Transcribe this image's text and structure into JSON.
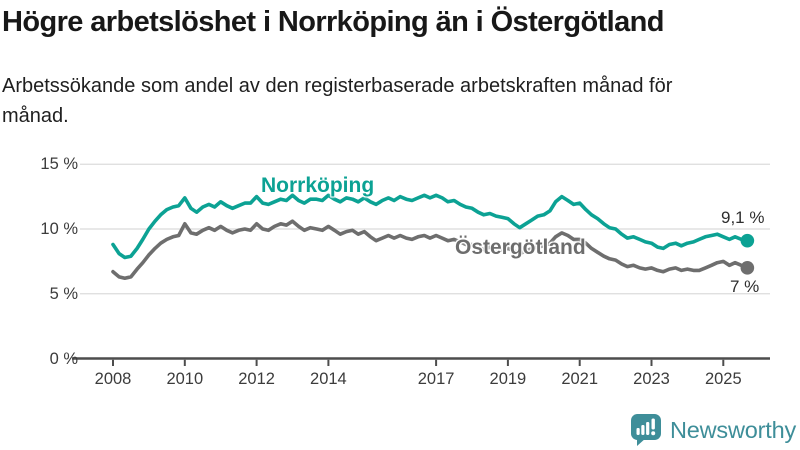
{
  "title": "Högre arbetslöshet i Norrköping än i Östergötland",
  "subtitle": "Arbetssökande som andel av den registerbaserade arbetskraften månad för månad.",
  "branding": {
    "logo_text": "Newsworthy",
    "logo_color": "#3e8e99",
    "logo_icon": "speech-bubble-bar-chart-exclamation"
  },
  "colors": {
    "series_norrkoping": "#0ca294",
    "series_ostergotland": "#6e6e6e",
    "gridline": "#dbdbdb",
    "axis": "#4d4d4d",
    "background": "#ffffff"
  },
  "chart_data": {
    "type": "line",
    "title": "Högre arbetslöshet i Norrköping än i Östergötland",
    "subtitle": "Arbetssökande som andel av den registerbaserade arbetskraften månad för månad.",
    "xlabel": "",
    "ylabel": "",
    "grid": true,
    "legend_position": "inline-labels-on-lines",
    "x_axis": {
      "ticks": [
        2008,
        2010,
        2012,
        2014,
        2017,
        2019,
        2021,
        2023,
        2025
      ],
      "tick_labels": [
        "2008",
        "2010",
        "2012",
        "2014",
        "2017",
        "2019",
        "2021",
        "2023",
        "2025"
      ],
      "range": [
        2007.8,
        2026.4
      ]
    },
    "y_axis": {
      "ticks": [
        0,
        5,
        10,
        15
      ],
      "tick_labels": [
        "0 %",
        "5 %",
        "10 %",
        "15 %"
      ],
      "range": [
        0,
        15.5
      ],
      "unit": "%"
    },
    "series": [
      {
        "name": "Norrköping",
        "color": "#0ca294",
        "end_label": "9,1 %",
        "latest_value": 9.1,
        "points": [
          [
            2008.0,
            8.8
          ],
          [
            2008.17,
            8.1
          ],
          [
            2008.33,
            7.8
          ],
          [
            2008.5,
            7.9
          ],
          [
            2008.67,
            8.5
          ],
          [
            2008.83,
            9.2
          ],
          [
            2009.0,
            10.0
          ],
          [
            2009.17,
            10.6
          ],
          [
            2009.33,
            11.1
          ],
          [
            2009.5,
            11.5
          ],
          [
            2009.67,
            11.7
          ],
          [
            2009.83,
            11.8
          ],
          [
            2010.0,
            12.4
          ],
          [
            2010.17,
            11.6
          ],
          [
            2010.33,
            11.3
          ],
          [
            2010.5,
            11.7
          ],
          [
            2010.67,
            11.9
          ],
          [
            2010.83,
            11.7
          ],
          [
            2011.0,
            12.1
          ],
          [
            2011.17,
            11.8
          ],
          [
            2011.33,
            11.6
          ],
          [
            2011.5,
            11.8
          ],
          [
            2011.67,
            12.0
          ],
          [
            2011.83,
            12.0
          ],
          [
            2012.0,
            12.5
          ],
          [
            2012.17,
            12.0
          ],
          [
            2012.33,
            11.9
          ],
          [
            2012.5,
            12.1
          ],
          [
            2012.67,
            12.3
          ],
          [
            2012.83,
            12.2
          ],
          [
            2013.0,
            12.6
          ],
          [
            2013.17,
            12.2
          ],
          [
            2013.33,
            12.0
          ],
          [
            2013.5,
            12.3
          ],
          [
            2013.67,
            12.3
          ],
          [
            2013.83,
            12.2
          ],
          [
            2014.0,
            12.6
          ],
          [
            2014.17,
            12.3
          ],
          [
            2014.33,
            12.1
          ],
          [
            2014.5,
            12.4
          ],
          [
            2014.67,
            12.3
          ],
          [
            2014.83,
            12.1
          ],
          [
            2015.0,
            12.4
          ],
          [
            2015.17,
            12.1
          ],
          [
            2015.33,
            11.9
          ],
          [
            2015.5,
            12.2
          ],
          [
            2015.67,
            12.4
          ],
          [
            2015.83,
            12.2
          ],
          [
            2016.0,
            12.5
          ],
          [
            2016.17,
            12.3
          ],
          [
            2016.33,
            12.2
          ],
          [
            2016.5,
            12.4
          ],
          [
            2016.67,
            12.6
          ],
          [
            2016.83,
            12.4
          ],
          [
            2017.0,
            12.6
          ],
          [
            2017.17,
            12.4
          ],
          [
            2017.33,
            12.1
          ],
          [
            2017.5,
            12.2
          ],
          [
            2017.67,
            11.9
          ],
          [
            2017.83,
            11.7
          ],
          [
            2018.0,
            11.6
          ],
          [
            2018.17,
            11.3
          ],
          [
            2018.33,
            11.1
          ],
          [
            2018.5,
            11.2
          ],
          [
            2018.67,
            11.0
          ],
          [
            2018.83,
            10.9
          ],
          [
            2019.0,
            10.8
          ],
          [
            2019.17,
            10.4
          ],
          [
            2019.33,
            10.1
          ],
          [
            2019.5,
            10.4
          ],
          [
            2019.67,
            10.7
          ],
          [
            2019.83,
            11.0
          ],
          [
            2020.0,
            11.1
          ],
          [
            2020.17,
            11.4
          ],
          [
            2020.33,
            12.1
          ],
          [
            2020.5,
            12.5
          ],
          [
            2020.67,
            12.2
          ],
          [
            2020.83,
            11.9
          ],
          [
            2021.0,
            12.0
          ],
          [
            2021.17,
            11.5
          ],
          [
            2021.33,
            11.1
          ],
          [
            2021.5,
            10.8
          ],
          [
            2021.67,
            10.4
          ],
          [
            2021.83,
            10.1
          ],
          [
            2022.0,
            10.0
          ],
          [
            2022.17,
            9.6
          ],
          [
            2022.33,
            9.3
          ],
          [
            2022.5,
            9.4
          ],
          [
            2022.67,
            9.2
          ],
          [
            2022.83,
            9.0
          ],
          [
            2023.0,
            8.9
          ],
          [
            2023.17,
            8.6
          ],
          [
            2023.33,
            8.5
          ],
          [
            2023.5,
            8.8
          ],
          [
            2023.67,
            8.9
          ],
          [
            2023.83,
            8.7
          ],
          [
            2024.0,
            8.9
          ],
          [
            2024.17,
            9.0
          ],
          [
            2024.33,
            9.2
          ],
          [
            2024.5,
            9.4
          ],
          [
            2024.67,
            9.5
          ],
          [
            2024.83,
            9.6
          ],
          [
            2025.0,
            9.4
          ],
          [
            2025.17,
            9.2
          ],
          [
            2025.33,
            9.4
          ],
          [
            2025.5,
            9.2
          ],
          [
            2025.67,
            9.1
          ]
        ]
      },
      {
        "name": "Östergötland",
        "color": "#6e6e6e",
        "end_label": "7 %",
        "latest_value": 7.0,
        "points": [
          [
            2008.0,
            6.7
          ],
          [
            2008.17,
            6.3
          ],
          [
            2008.33,
            6.2
          ],
          [
            2008.5,
            6.3
          ],
          [
            2008.67,
            6.9
          ],
          [
            2008.83,
            7.4
          ],
          [
            2009.0,
            8.0
          ],
          [
            2009.17,
            8.5
          ],
          [
            2009.33,
            8.9
          ],
          [
            2009.5,
            9.2
          ],
          [
            2009.67,
            9.4
          ],
          [
            2009.83,
            9.5
          ],
          [
            2010.0,
            10.4
          ],
          [
            2010.17,
            9.7
          ],
          [
            2010.33,
            9.6
          ],
          [
            2010.5,
            9.9
          ],
          [
            2010.67,
            10.1
          ],
          [
            2010.83,
            9.9
          ],
          [
            2011.0,
            10.2
          ],
          [
            2011.17,
            9.9
          ],
          [
            2011.33,
            9.7
          ],
          [
            2011.5,
            9.9
          ],
          [
            2011.67,
            10.0
          ],
          [
            2011.83,
            9.9
          ],
          [
            2012.0,
            10.4
          ],
          [
            2012.17,
            10.0
          ],
          [
            2012.33,
            9.9
          ],
          [
            2012.5,
            10.2
          ],
          [
            2012.67,
            10.4
          ],
          [
            2012.83,
            10.3
          ],
          [
            2013.0,
            10.6
          ],
          [
            2013.17,
            10.2
          ],
          [
            2013.33,
            9.9
          ],
          [
            2013.5,
            10.1
          ],
          [
            2013.67,
            10.0
          ],
          [
            2013.83,
            9.9
          ],
          [
            2014.0,
            10.2
          ],
          [
            2014.17,
            9.9
          ],
          [
            2014.33,
            9.6
          ],
          [
            2014.5,
            9.8
          ],
          [
            2014.67,
            9.9
          ],
          [
            2014.83,
            9.6
          ],
          [
            2015.0,
            9.8
          ],
          [
            2015.17,
            9.4
          ],
          [
            2015.33,
            9.1
          ],
          [
            2015.5,
            9.3
          ],
          [
            2015.67,
            9.5
          ],
          [
            2015.83,
            9.3
          ],
          [
            2016.0,
            9.5
          ],
          [
            2016.17,
            9.3
          ],
          [
            2016.33,
            9.2
          ],
          [
            2016.5,
            9.4
          ],
          [
            2016.67,
            9.5
          ],
          [
            2016.83,
            9.3
          ],
          [
            2017.0,
            9.5
          ],
          [
            2017.17,
            9.3
          ],
          [
            2017.33,
            9.1
          ],
          [
            2017.5,
            9.2
          ],
          [
            2017.67,
            9.0
          ],
          [
            2017.83,
            8.8
          ],
          [
            2018.0,
            8.8
          ],
          [
            2018.17,
            8.6
          ],
          [
            2018.33,
            8.4
          ],
          [
            2018.5,
            8.6
          ],
          [
            2018.67,
            8.5
          ],
          [
            2018.83,
            8.4
          ],
          [
            2019.0,
            8.5
          ],
          [
            2019.17,
            8.3
          ],
          [
            2019.33,
            8.1
          ],
          [
            2019.5,
            8.3
          ],
          [
            2019.67,
            8.5
          ],
          [
            2019.83,
            8.6
          ],
          [
            2020.0,
            8.7
          ],
          [
            2020.17,
            8.9
          ],
          [
            2020.33,
            9.4
          ],
          [
            2020.5,
            9.7
          ],
          [
            2020.67,
            9.5
          ],
          [
            2020.83,
            9.2
          ],
          [
            2021.0,
            9.2
          ],
          [
            2021.17,
            8.9
          ],
          [
            2021.33,
            8.5
          ],
          [
            2021.5,
            8.2
          ],
          [
            2021.67,
            7.9
          ],
          [
            2021.83,
            7.7
          ],
          [
            2022.0,
            7.6
          ],
          [
            2022.17,
            7.3
          ],
          [
            2022.33,
            7.1
          ],
          [
            2022.5,
            7.2
          ],
          [
            2022.67,
            7.0
          ],
          [
            2022.83,
            6.9
          ],
          [
            2023.0,
            7.0
          ],
          [
            2023.17,
            6.8
          ],
          [
            2023.33,
            6.7
          ],
          [
            2023.5,
            6.9
          ],
          [
            2023.67,
            7.0
          ],
          [
            2023.83,
            6.8
          ],
          [
            2024.0,
            6.9
          ],
          [
            2024.17,
            6.8
          ],
          [
            2024.33,
            6.8
          ],
          [
            2024.5,
            7.0
          ],
          [
            2024.67,
            7.2
          ],
          [
            2024.83,
            7.4
          ],
          [
            2025.0,
            7.5
          ],
          [
            2025.17,
            7.2
          ],
          [
            2025.33,
            7.4
          ],
          [
            2025.5,
            7.2
          ],
          [
            2025.67,
            7.0
          ]
        ]
      }
    ]
  }
}
